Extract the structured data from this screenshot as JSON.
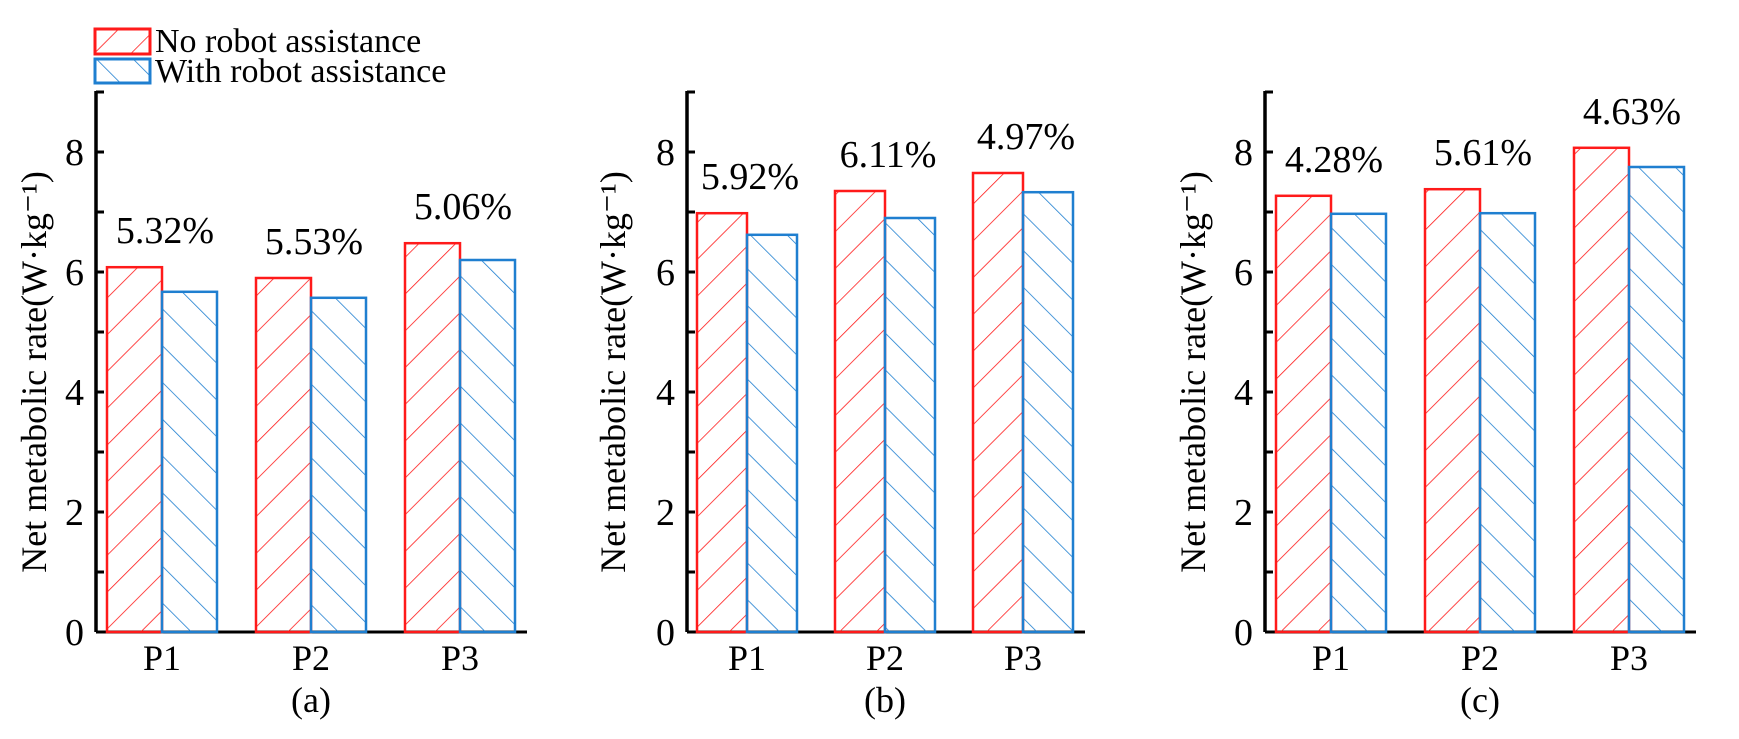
{
  "chart_data": [
    {
      "type": "bar",
      "panel_label": "(a)",
      "categories": [
        "P1",
        "P2",
        "P3"
      ],
      "ylabel": "Net metabolic rate(W·kg⁻¹)",
      "ylim": [
        0,
        9
      ],
      "yticks": [
        0,
        2,
        4,
        6,
        8
      ],
      "series": [
        {
          "name": "No robot assistance",
          "values": [
            6.08,
            5.9,
            6.48
          ]
        },
        {
          "name": "With robot assistance",
          "values": [
            5.67,
            5.57,
            6.2
          ]
        }
      ],
      "annotations": [
        "5.32%",
        "5.53%",
        "5.06%"
      ]
    },
    {
      "type": "bar",
      "panel_label": "(b)",
      "categories": [
        "P1",
        "P2",
        "P3"
      ],
      "ylabel": "Net metabolic rate(W·kg⁻¹)",
      "ylim": [
        0,
        9
      ],
      "yticks": [
        0,
        2,
        4,
        6,
        8
      ],
      "series": [
        {
          "name": "No robot assistance",
          "values": [
            6.98,
            7.35,
            7.65
          ]
        },
        {
          "name": "With robot assistance",
          "values": [
            6.62,
            6.9,
            7.33
          ]
        }
      ],
      "annotations": [
        "5.92%",
        "6.11%",
        "4.97%"
      ]
    },
    {
      "type": "bar",
      "panel_label": "(c)",
      "categories": [
        "P1",
        "P2",
        "P3"
      ],
      "ylabel": "Net metabolic rate(W·kg⁻¹)",
      "ylim": [
        0,
        9
      ],
      "yticks": [
        0,
        2,
        4,
        6,
        8
      ],
      "series": [
        {
          "name": "No robot assistance",
          "values": [
            7.27,
            7.38,
            8.07
          ]
        },
        {
          "name": "With robot assistance",
          "values": [
            6.97,
            6.98,
            7.75
          ]
        }
      ],
      "annotations": [
        "4.28%",
        "5.61%",
        "4.63%"
      ]
    }
  ],
  "legend": {
    "placement": "top-left",
    "items": [
      {
        "label": "No robot assistance",
        "color": "#ff1a1a",
        "hatch": "forward-diagonal"
      },
      {
        "label": "With robot assistance",
        "color": "#1f7fd0",
        "hatch": "back-diagonal"
      }
    ]
  },
  "colors": {
    "red": "#ff1a1a",
    "blue": "#1f7fd0",
    "axis": "#000000"
  }
}
